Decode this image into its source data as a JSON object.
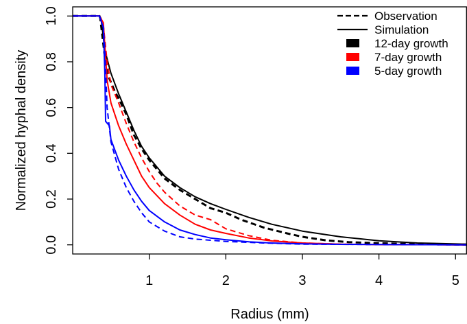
{
  "chart_data": {
    "type": "line",
    "xlabel": "Radius (mm)",
    "ylabel": "Normalized hyphal density",
    "xlim": [
      0.0,
      5.15
    ],
    "ylim": [
      -0.04,
      1.04
    ],
    "x_ticks": [
      1,
      2,
      3,
      4,
      5
    ],
    "y_ticks": [
      0.0,
      0.2,
      0.4,
      0.6,
      0.8,
      1.0
    ],
    "y_tick_labels": [
      "0.0",
      "0.2",
      "0.4",
      "0.6",
      "0.8",
      "1.0"
    ],
    "grid": false,
    "legend": {
      "position": "top-right",
      "style_entries": [
        {
          "label": "Observation",
          "style": "dashed"
        },
        {
          "label": "Simulation",
          "style": "solid"
        }
      ],
      "color_entries": [
        {
          "label": "12-day growth",
          "color": "#000000"
        },
        {
          "label": "7-day growth",
          "color": "#ff0000"
        },
        {
          "label": "5-day growth",
          "color": "#0000ff"
        }
      ]
    },
    "series": [
      {
        "color": "#000000",
        "style": "dashed",
        "width": 3,
        "x": [
          0,
          0.35,
          0.36,
          0.42,
          0.45,
          0.5,
          0.55,
          0.6,
          0.7,
          0.8,
          0.9,
          1.0,
          1.2,
          1.4,
          1.6,
          1.8,
          2.0,
          2.2,
          2.5,
          2.8,
          3.0,
          3.3,
          3.6,
          4.0,
          4.5,
          5.15
        ],
        "y": [
          1.0,
          1.0,
          0.99,
          0.82,
          0.75,
          0.71,
          0.67,
          0.64,
          0.57,
          0.48,
          0.42,
          0.37,
          0.29,
          0.24,
          0.2,
          0.16,
          0.14,
          0.11,
          0.075,
          0.05,
          0.035,
          0.02,
          0.012,
          0.007,
          0.003,
          0.001
        ]
      },
      {
        "color": "#000000",
        "style": "solid",
        "width": 2,
        "x": [
          0,
          0.35,
          0.37,
          0.42,
          0.5,
          0.6,
          0.7,
          0.8,
          0.9,
          1.0,
          1.2,
          1.4,
          1.6,
          1.8,
          2.0,
          2.3,
          2.6,
          3.0,
          3.5,
          4.0,
          4.5,
          5.15
        ],
        "y": [
          1.0,
          1.0,
          0.99,
          0.85,
          0.75,
          0.66,
          0.58,
          0.5,
          0.43,
          0.38,
          0.3,
          0.25,
          0.21,
          0.18,
          0.155,
          0.12,
          0.09,
          0.06,
          0.035,
          0.018,
          0.008,
          0.003
        ]
      },
      {
        "color": "#ff0000",
        "style": "dashed",
        "width": 2,
        "x": [
          0,
          0.35,
          0.4,
          0.45,
          0.5,
          0.6,
          0.7,
          0.8,
          0.9,
          1.0,
          1.1,
          1.2,
          1.4,
          1.6,
          1.8,
          2.0,
          2.3,
          2.6,
          3.0,
          3.5,
          4.0,
          5.15
        ],
        "y": [
          1.0,
          1.0,
          0.96,
          0.8,
          0.7,
          0.62,
          0.53,
          0.45,
          0.38,
          0.32,
          0.27,
          0.23,
          0.17,
          0.13,
          0.11,
          0.07,
          0.04,
          0.02,
          0.008,
          0.003,
          0.001,
          0.0
        ]
      },
      {
        "color": "#ff0000",
        "style": "solid",
        "width": 2,
        "x": [
          0,
          0.35,
          0.4,
          0.45,
          0.5,
          0.6,
          0.7,
          0.8,
          0.9,
          1.0,
          1.2,
          1.4,
          1.6,
          1.8,
          2.0,
          2.3,
          2.6,
          3.0,
          3.5,
          4.0,
          5.15
        ],
        "y": [
          1.0,
          1.0,
          0.97,
          0.72,
          0.62,
          0.52,
          0.44,
          0.37,
          0.3,
          0.25,
          0.18,
          0.13,
          0.09,
          0.065,
          0.05,
          0.03,
          0.017,
          0.008,
          0.003,
          0.001,
          0.0
        ]
      },
      {
        "color": "#0000ff",
        "style": "dashed",
        "width": 2,
        "x": [
          0,
          0.35,
          0.4,
          0.42,
          0.45,
          0.5,
          0.6,
          0.7,
          0.8,
          0.9,
          1.0,
          1.2,
          1.4,
          1.6,
          1.8,
          2.0,
          2.5,
          3.0,
          4.0,
          5.15
        ],
        "y": [
          1.0,
          1.0,
          0.95,
          0.85,
          0.6,
          0.45,
          0.33,
          0.25,
          0.19,
          0.14,
          0.1,
          0.06,
          0.035,
          0.025,
          0.02,
          0.015,
          0.008,
          0.003,
          0.001,
          0.0
        ]
      },
      {
        "color": "#0000ff",
        "style": "solid",
        "width": 2,
        "x": [
          0,
          0.35,
          0.4,
          0.42,
          0.43,
          0.48,
          0.5,
          0.6,
          0.7,
          0.8,
          0.9,
          1.0,
          1.2,
          1.4,
          1.6,
          1.8,
          2.0,
          2.3,
          2.6,
          3.0,
          3.5,
          4.0,
          5.15
        ],
        "y": [
          1.0,
          1.0,
          0.95,
          0.75,
          0.54,
          0.52,
          0.46,
          0.37,
          0.3,
          0.24,
          0.19,
          0.15,
          0.1,
          0.065,
          0.045,
          0.03,
          0.022,
          0.013,
          0.008,
          0.004,
          0.002,
          0.001,
          0.0
        ]
      }
    ]
  }
}
